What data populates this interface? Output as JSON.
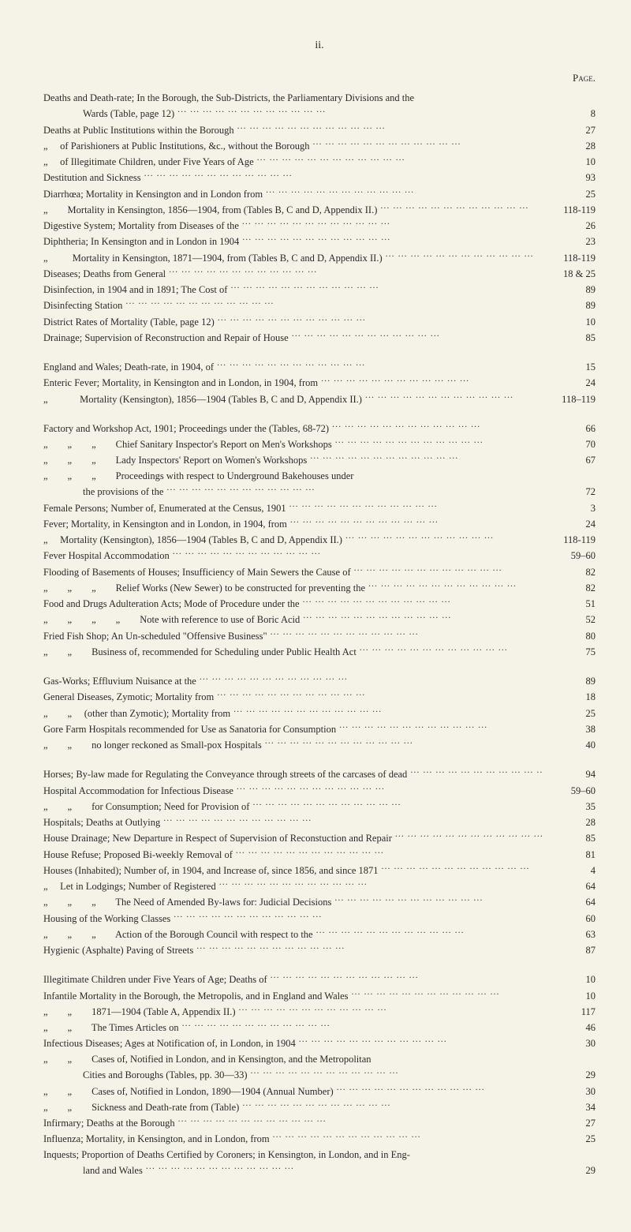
{
  "page_number_roman": "ii.",
  "page_header": "Page.",
  "background_color": "#f5f2e8",
  "text_color": "#2a2a2a",
  "font_family": "Times New Roman",
  "base_font_size_pt": 12.5,
  "blocks": [
    {
      "entries": [
        {
          "text": "Deaths and Death-rate; In the Borough, the Sub-Districts, the Parliamentary Divisions and the",
          "page": "",
          "indent": 0,
          "no_dots": true
        },
        {
          "text": "Wards (Table, page 12)",
          "page": "8",
          "indent": 2
        },
        {
          "text": "Deaths at Public Institutions within the Borough",
          "page": "27",
          "indent": 0
        },
        {
          "text": "„     of Parishioners at Public Institutions, &c., without the Borough",
          "page": "28",
          "indent": 0
        },
        {
          "text": "„     of Illegitimate Children, under Five Years of Age",
          "page": "10",
          "indent": 0
        },
        {
          "text": "Destitution and Sickness",
          "page": "93",
          "indent": 0
        },
        {
          "text": "Diarrhœa; Mortality in Kensington and in London from",
          "page": "25",
          "indent": 0
        },
        {
          "text": "„        Mortality in Kensington, 1856—1904, from (Tables B, C and D, Appendix II.)",
          "page": "118-119",
          "indent": 0
        },
        {
          "text": "Digestive System; Mortality from Diseases of the",
          "page": "26",
          "indent": 0
        },
        {
          "text": "Diphtheria; In Kensington and in London in 1904",
          "page": "23",
          "indent": 0
        },
        {
          "text": "„          Mortality in Kensington, 1871—1904, from (Tables B, C and D, Appendix II.)",
          "page": "118-119",
          "indent": 0
        },
        {
          "text": "Diseases; Deaths from General",
          "page": "18 & 25",
          "indent": 0
        },
        {
          "text": "Disinfection, in 1904 and in 1891; The Cost of",
          "page": "89",
          "indent": 0
        },
        {
          "text": "Disinfecting Station",
          "page": "89",
          "indent": 0
        },
        {
          "text": "District Rates of Mortality (Table, page 12)",
          "page": "10",
          "indent": 0
        },
        {
          "text": "Drainage; Supervision of Reconstruction and Repair of House",
          "page": "85",
          "indent": 0
        }
      ]
    },
    {
      "entries": [
        {
          "text": "England and Wales; Death-rate, in 1904, of",
          "page": "15",
          "indent": 0
        },
        {
          "text": "Enteric Fever; Mortality, in Kensington and in London, in 1904, from",
          "page": "24",
          "indent": 0
        },
        {
          "text": "„             Mortality (Kensington), 1856—1904 (Tables B, C and D, Appendix II.)",
          "page": "118–119",
          "indent": 0
        }
      ]
    },
    {
      "entries": [
        {
          "text": "Factory and Workshop Act, 1901; Proceedings under the (Tables, 68-72)",
          "page": "66",
          "indent": 0
        },
        {
          "text": "„        „        „        Chief Sanitary Inspector's Report on Men's Workshops",
          "page": "70",
          "indent": 0
        },
        {
          "text": "„        „        „        Lady Inspectors' Report on Women's Workshops",
          "page": "67",
          "indent": 0
        },
        {
          "text": "„        „        „        Proceedings with respect to Underground Bakehouses under",
          "page": "",
          "indent": 0,
          "no_dots": true
        },
        {
          "text": "the provisions of the",
          "page": "72",
          "indent": 2
        },
        {
          "text": "Female Persons; Number of, Enumerated at the Census, 1901",
          "page": "3",
          "indent": 0
        },
        {
          "text": "Fever; Mortality, in Kensington and in London, in 1904, from",
          "page": "24",
          "indent": 0
        },
        {
          "text": "„     Mortality (Kensington), 1856—1904 (Tables B, C and D, Appendix II.)",
          "page": "118-119",
          "indent": 0
        },
        {
          "text": "Fever Hospital Accommodation",
          "page": "59–60",
          "indent": 0
        },
        {
          "text": "Flooding of Basements of Houses; Insufficiency of Main Sewers the Cause of",
          "page": "82",
          "indent": 0
        },
        {
          "text": "„        „        „        Relief Works (New Sewer) to be constructed for preventing the",
          "page": "82",
          "indent": 0
        },
        {
          "text": "Food and Drugs Adulteration Acts; Mode of Procedure under the",
          "page": "51",
          "indent": 0
        },
        {
          "text": "„        „        „        „        Note with reference to use of Boric Acid",
          "page": "52",
          "indent": 0
        },
        {
          "text": "Fried Fish Shop; An Un-scheduled \"Offensive Business\"",
          "page": "80",
          "indent": 0
        },
        {
          "text": "„        „        Business of, recommended for Scheduling under Public Health Act",
          "page": "75",
          "indent": 0
        }
      ]
    },
    {
      "entries": [
        {
          "text": "Gas-Works; Effluvium Nuisance at the",
          "page": "89",
          "indent": 0
        },
        {
          "text": "General Diseases, Zymotic; Mortality from",
          "page": "18",
          "indent": 0
        },
        {
          "text": "„        „     (other than Zymotic); Mortality from",
          "page": "25",
          "indent": 0
        },
        {
          "text": "Gore Farm Hospitals recommended for Use as Sanatoria for Consumption",
          "page": "38",
          "indent": 0
        },
        {
          "text": "„        „        no longer reckoned as Small-pox Hospitals",
          "page": "40",
          "indent": 0
        }
      ]
    },
    {
      "entries": [
        {
          "text": "Horses; By-law made for Regulating the Conveyance through streets of the carcases of dead",
          "page": "94",
          "indent": 0
        },
        {
          "text": "Hospital Accommodation for Infectious Disease",
          "page": "59–60",
          "indent": 0
        },
        {
          "text": "„        „        for Consumption; Need for Provision of",
          "page": "35",
          "indent": 0
        },
        {
          "text": "Hospitals; Deaths at Outlying",
          "page": "28",
          "indent": 0
        },
        {
          "text": "House Drainage; New Departure in Respect of Supervision of Reconstuction and Repair",
          "page": "85",
          "indent": 0
        },
        {
          "text": "House Refuse; Proposed Bi-weekly Removal of",
          "page": "81",
          "indent": 0
        },
        {
          "text": "Houses (Inhabited); Number of, in 1904, and Increase of, since 1856, and since 1871",
          "page": "4",
          "indent": 0
        },
        {
          "text": "„     Let in Lodgings; Number of Registered",
          "page": "64",
          "indent": 0
        },
        {
          "text": "„        „        „        The Need of Amended By-laws for: Judicial Decisions",
          "page": "64",
          "indent": 0
        },
        {
          "text": "Housing of the Working Classes",
          "page": "60",
          "indent": 0
        },
        {
          "text": "„        „        „        Action of the Borough Council with respect to the",
          "page": "63",
          "indent": 0
        },
        {
          "text": "Hygienic (Asphalte) Paving of Streets",
          "page": "87",
          "indent": 0
        }
      ]
    },
    {
      "entries": [
        {
          "text": "Illegitimate Children under Five Years of Age; Deaths of",
          "page": "10",
          "indent": 0
        },
        {
          "text": "Infantile Mortality in the Borough, the Metropolis, and in England and Wales",
          "page": "10",
          "indent": 0
        },
        {
          "text": "„        „        1871—1904 (Table A, Appendix II.)",
          "page": "117",
          "indent": 0
        },
        {
          "text": "„        „        The Times Articles on",
          "page": "46",
          "indent": 0
        },
        {
          "text": "Infectious Diseases; Ages at Notification of, in London, in 1904",
          "page": "30",
          "indent": 0
        },
        {
          "text": "„        „        Cases of, Notified in London, and in Kensington, and the Metropolitan",
          "page": "",
          "indent": 0,
          "no_dots": true
        },
        {
          "text": "Cities and Boroughs (Tables, pp. 30—33)",
          "page": "29",
          "indent": 2
        },
        {
          "text": "„        „        Cases of, Notified in London, 1890—1904 (Annual Number)",
          "page": "30",
          "indent": 0
        },
        {
          "text": "„        „        Sickness and Death-rate from (Table)",
          "page": "34",
          "indent": 0
        },
        {
          "text": "Infirmary; Deaths at the Borough",
          "page": "27",
          "indent": 0
        },
        {
          "text": "Influenza; Mortality, in Kensington, and in London, from",
          "page": "25",
          "indent": 0
        },
        {
          "text": "Inquests; Proportion of Deaths Certified by Coroners; in Kensington, in London, and in Eng-",
          "page": "",
          "indent": 0,
          "no_dots": true
        },
        {
          "text": "land and Wales",
          "page": "29",
          "indent": 2
        }
      ]
    }
  ]
}
